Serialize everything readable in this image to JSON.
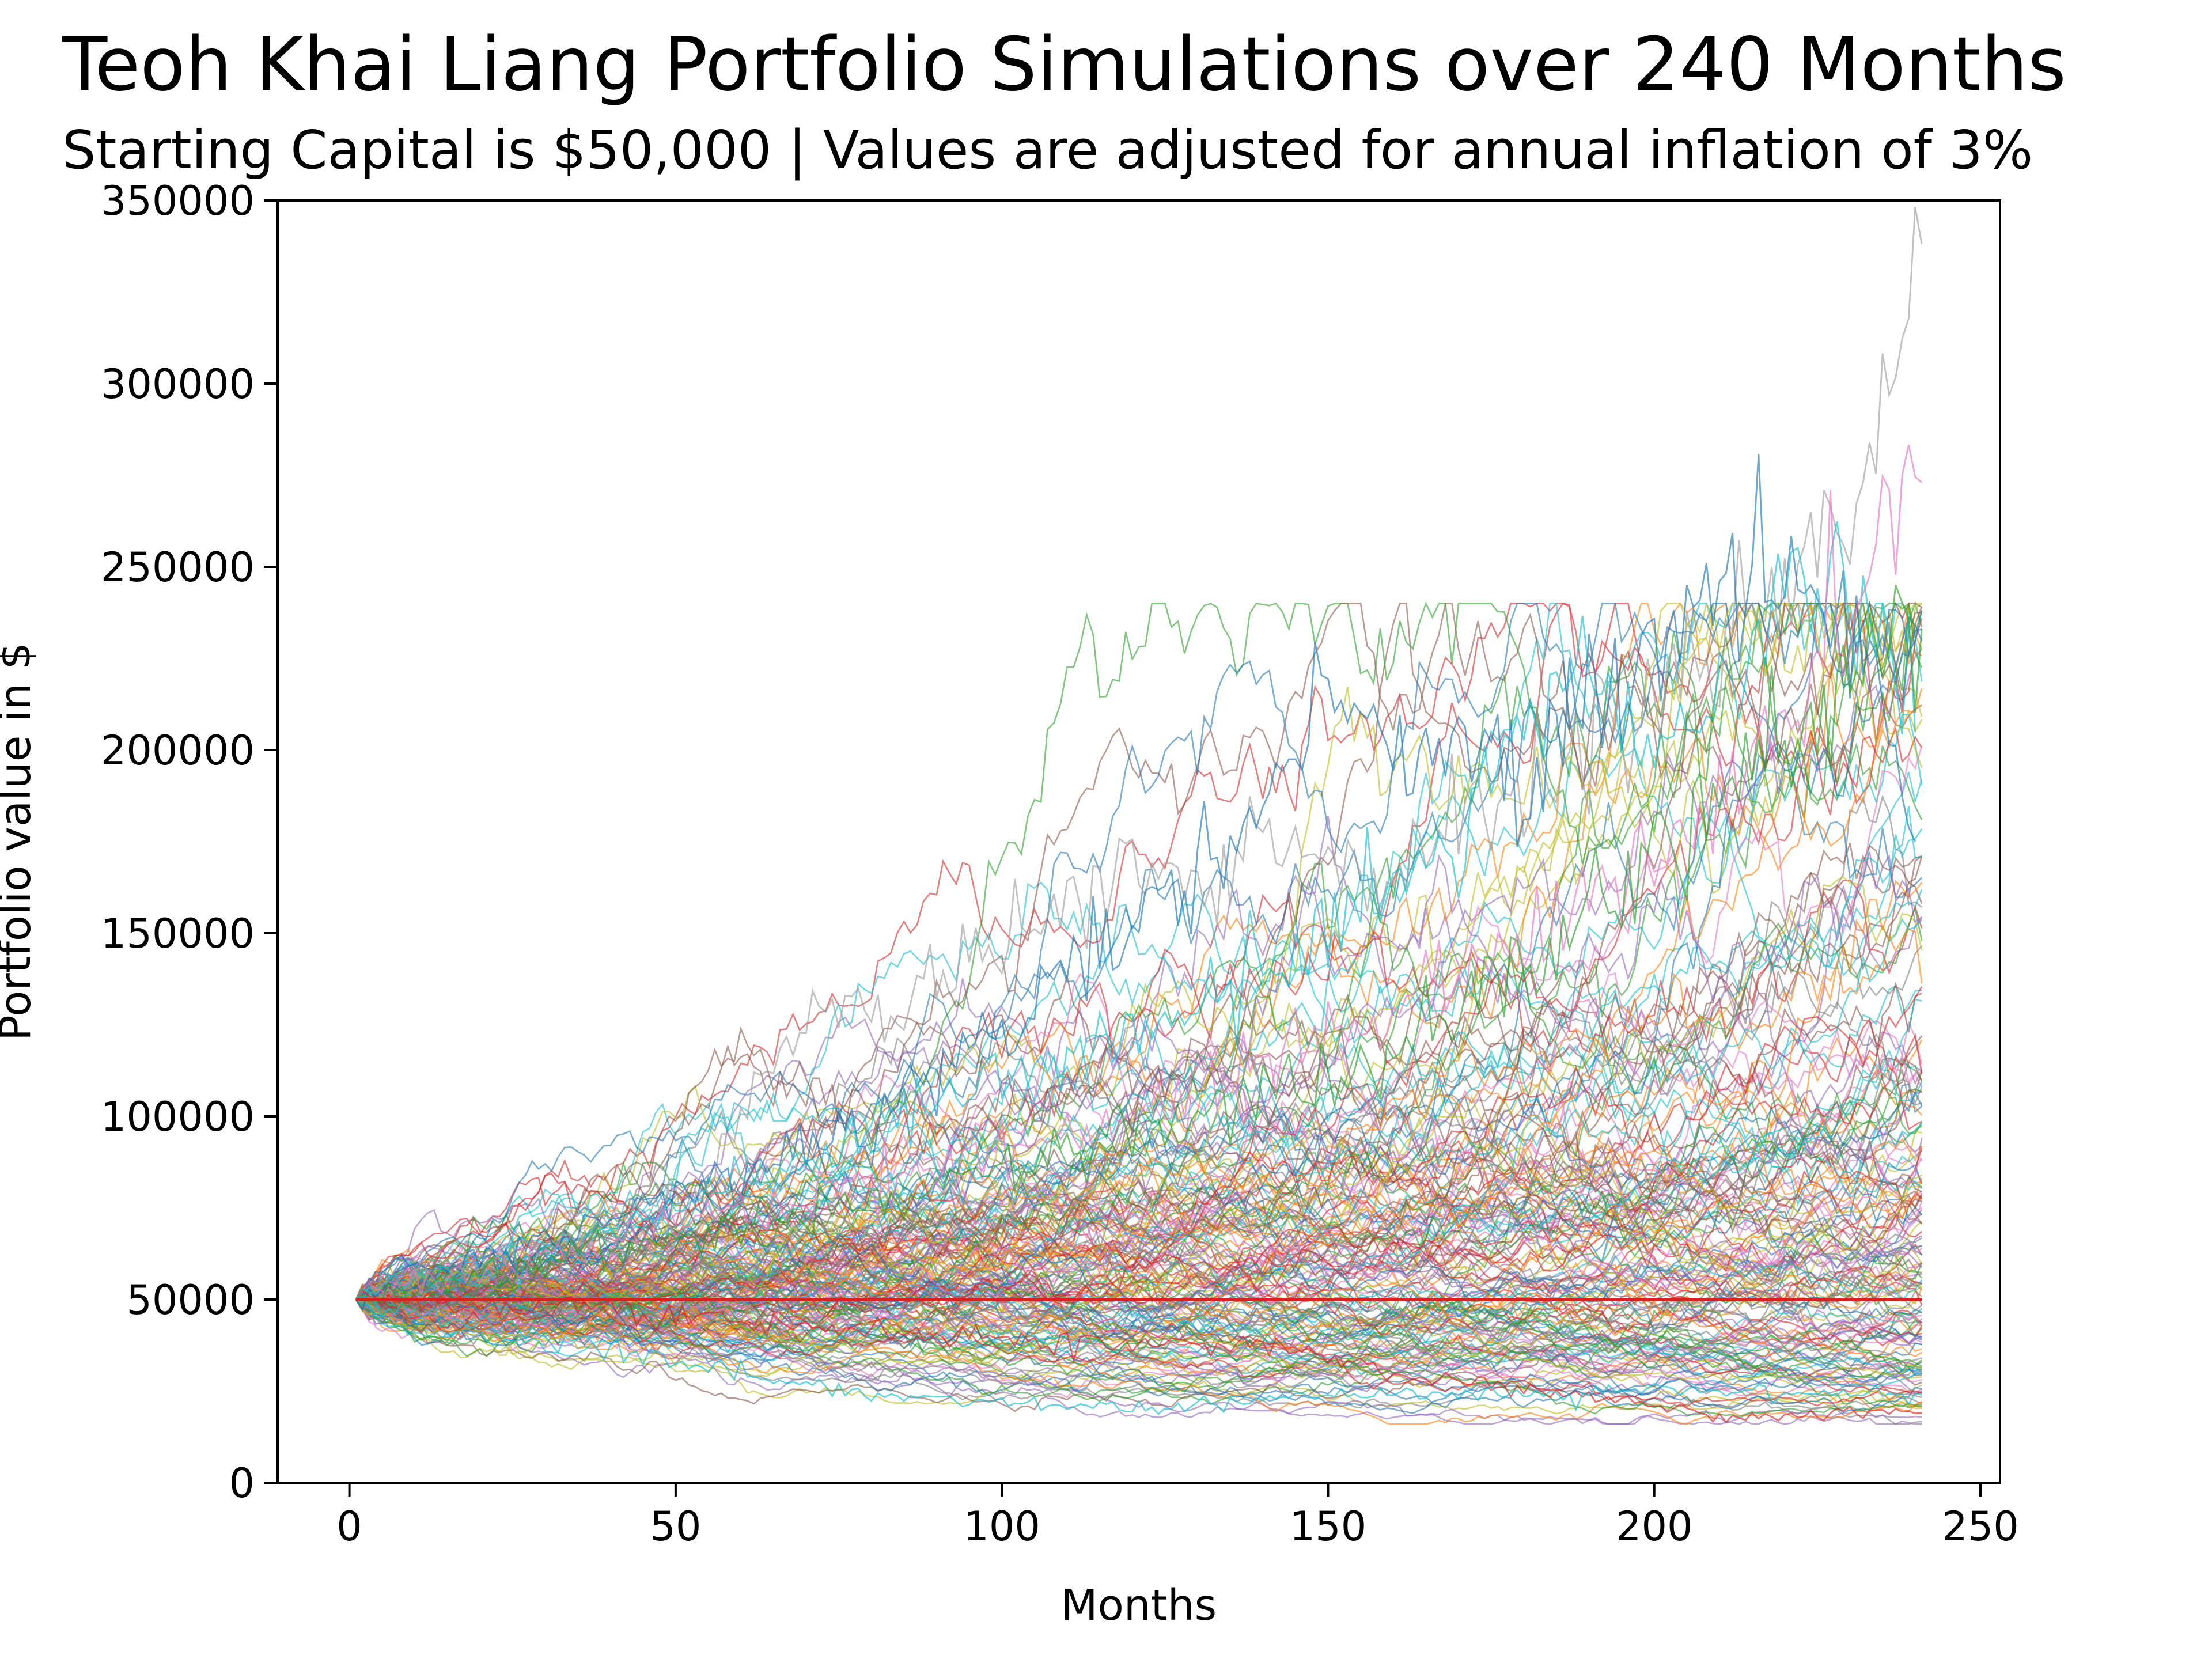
{
  "chart_data": {
    "type": "line",
    "title": "Teoh Khai Liang Portfolio Simulations over 240 Months",
    "subtitle": "Starting Capital is $50,000 | Values are adjusted for annual inflation of 3%",
    "xlabel": "Months",
    "ylabel": "Portfolio value in $",
    "xlim": [
      -11,
      253
    ],
    "ylim": [
      0,
      350000
    ],
    "x_ticks": [
      0,
      50,
      100,
      150,
      200,
      250
    ],
    "y_ticks": [
      0,
      50000,
      100000,
      150000,
      200000,
      250000,
      300000,
      350000
    ],
    "x_tick_labels": [
      "0",
      "50",
      "100",
      "150",
      "200",
      "250"
    ],
    "y_tick_labels": [
      "0",
      "50000",
      "100000",
      "150000",
      "200000",
      "250000",
      "300000",
      "350000"
    ],
    "grid": false,
    "legend": "none",
    "simulation": {
      "count": 200,
      "months": 240,
      "start_month": 1,
      "starting_value": 50000,
      "final_value_highest": 338000,
      "final_value_lowest": 18000
    },
    "reference_line": {
      "value": 50000,
      "x_start": 1,
      "x_end": 241,
      "color": "#e11d1d"
    },
    "highlighted_paths": [
      {
        "color": "#a0a0a0",
        "x": [
          1,
          20,
          40,
          55,
          60,
          70,
          75,
          85,
          90,
          100,
          110,
          120,
          130,
          140,
          150,
          160,
          170,
          180,
          190,
          200,
          210,
          220,
          230,
          236,
          241
        ],
        "values": [
          50000,
          62000,
          70000,
          80000,
          100000,
          125000,
          135000,
          125000,
          148000,
          145000,
          160000,
          170000,
          160000,
          175000,
          170000,
          165000,
          180000,
          190000,
          200000,
          210000,
          230000,
          250000,
          270000,
          305000,
          338000
        ]
      },
      {
        "color": "#1f77b4",
        "x": [
          1,
          20,
          40,
          60,
          80,
          100,
          120,
          140,
          150,
          160,
          170,
          180,
          190,
          200,
          210,
          220,
          230,
          240
        ],
        "values": [
          50000,
          60000,
          72000,
          85000,
          100000,
          125000,
          150000,
          185000,
          215000,
          200000,
          205000,
          190000,
          220000,
          225000,
          245000,
          250000,
          240000,
          175000
        ]
      },
      {
        "color": "#17becf",
        "x": [
          1,
          20,
          40,
          60,
          80,
          100,
          120,
          140,
          160,
          170,
          180,
          190,
          200,
          210,
          220,
          230,
          240
        ],
        "values": [
          50000,
          58000,
          68000,
          80000,
          95000,
          110000,
          125000,
          140000,
          165000,
          175000,
          210000,
          225000,
          200000,
          215000,
          235000,
          245000,
          205000
        ]
      },
      {
        "color": "#e377c2",
        "x": [
          1,
          30,
          60,
          90,
          120,
          150,
          180,
          200,
          215,
          225,
          235,
          241
        ],
        "values": [
          50000,
          60000,
          75000,
          85000,
          100000,
          120000,
          150000,
          170000,
          195000,
          230000,
          255000,
          273000
        ]
      },
      {
        "color": "#2ca02c",
        "x": [
          1,
          30,
          60,
          90,
          120,
          150,
          180,
          200,
          220,
          241
        ],
        "values": [
          50000,
          60000,
          70000,
          80000,
          95000,
          110000,
          140000,
          170000,
          205000,
          233000
        ]
      },
      {
        "color": "#d62728",
        "x": [
          1,
          30,
          60,
          90,
          120,
          150,
          160,
          180,
          200,
          210,
          241
        ],
        "values": [
          50000,
          48000,
          44000,
          40000,
          38000,
          35000,
          30000,
          26000,
          21000,
          18000,
          19000
        ]
      },
      {
        "color": "#17becf",
        "x": [
          1,
          30,
          60,
          80,
          100,
          120,
          150,
          200,
          241
        ],
        "values": [
          50000,
          40000,
          30000,
          24000,
          22000,
          20000,
          24000,
          25000,
          24000
        ]
      }
    ],
    "palette": [
      "#1f77b4",
      "#ff7f0e",
      "#2ca02c",
      "#d62728",
      "#9467bd",
      "#8c564b",
      "#e377c2",
      "#7f7f7f",
      "#bcbd22",
      "#17becf"
    ]
  }
}
